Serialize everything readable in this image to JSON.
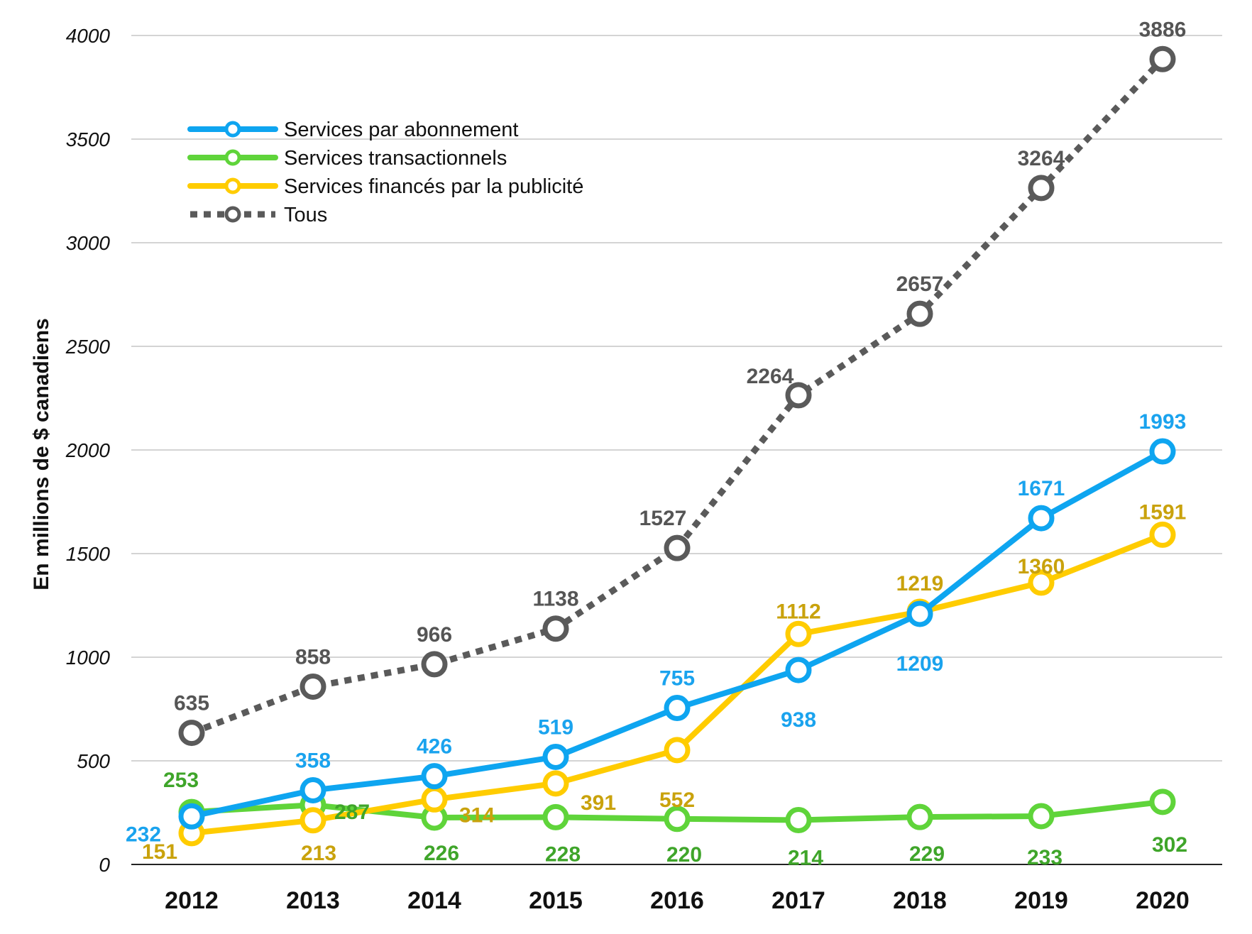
{
  "chart_data": {
    "type": "line",
    "ylabel": "En millions de $ canadiens",
    "xlabel": "",
    "title": "",
    "ylim": [
      0,
      4000
    ],
    "yticks": [
      0,
      500,
      1000,
      1500,
      2000,
      2500,
      3000,
      3500,
      4000
    ],
    "y_tick_labels": [
      "0",
      "500",
      "1000",
      "1500",
      "2000",
      "2500",
      "3000",
      "3500",
      "4000"
    ],
    "grid": true,
    "legend_position": "top-left",
    "categories": [
      "2012",
      "2013",
      "2014",
      "2015",
      "2016",
      "2017",
      "2018",
      "2019",
      "2020"
    ],
    "series": [
      {
        "name": "Services par abonnement",
        "color": "#0ea5f0",
        "label_color": "#1aa3ee",
        "dashed": false,
        "values": [
          232,
          358,
          426,
          519,
          755,
          938,
          1209,
          1671,
          1993
        ],
        "value_labels": [
          "232",
          "358",
          "426",
          "519",
          "755",
          "938",
          "1209",
          "1671",
          "1993"
        ]
      },
      {
        "name": "Services transactionnels",
        "color": "#5fd43a",
        "label_color": "#3fa52a",
        "dashed": false,
        "values": [
          253,
          287,
          226,
          228,
          220,
          214,
          229,
          233,
          302
        ],
        "value_labels": [
          "253",
          "287",
          "226",
          "228",
          "220",
          "214",
          "229",
          "233",
          "302"
        ]
      },
      {
        "name": "Services financés par la publicité",
        "color": "#ffcc00",
        "label_color": "#c9a20c",
        "dashed": false,
        "values": [
          151,
          213,
          314,
          391,
          552,
          1112,
          1219,
          1360,
          1591
        ],
        "value_labels": [
          "151",
          "213",
          "314",
          "391",
          "552",
          "1112",
          "1219",
          "1360",
          "1591"
        ]
      },
      {
        "name": "Tous",
        "color": "#5a5a5a",
        "label_color": "#555555",
        "dashed": true,
        "values": [
          635,
          858,
          966,
          1138,
          1527,
          2264,
          2657,
          3264,
          3886
        ],
        "value_labels": [
          "635",
          "858",
          "966",
          "1138",
          "1527",
          "2264",
          "2657",
          "3264",
          "3886"
        ]
      }
    ]
  }
}
